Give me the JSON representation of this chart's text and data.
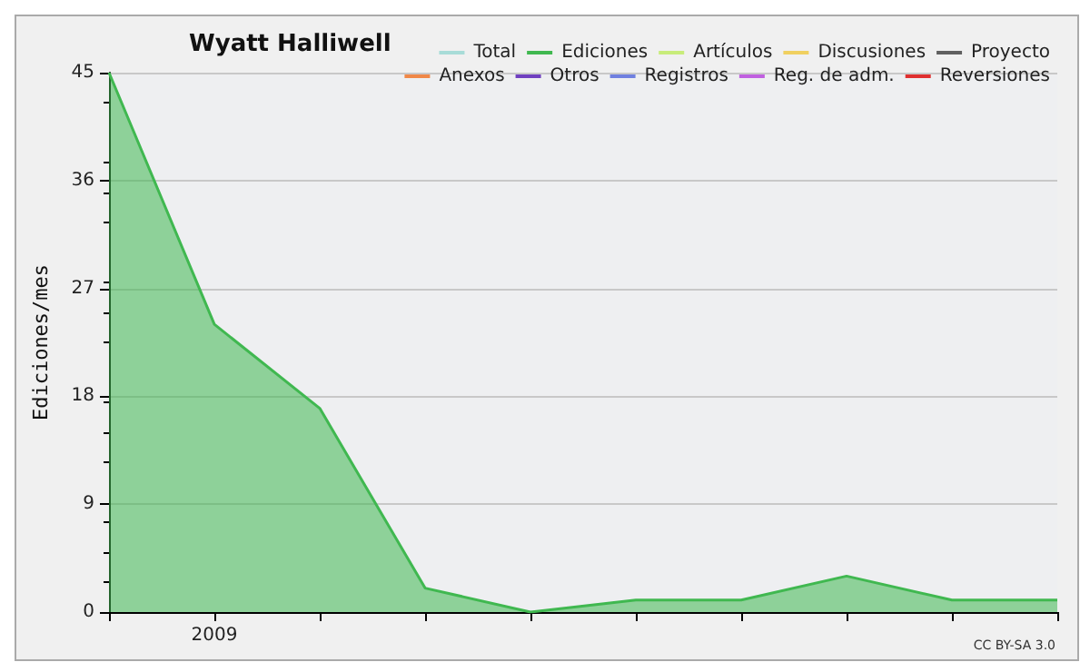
{
  "chart_data": {
    "type": "area",
    "title": "Wyatt Halliwell",
    "ylabel": "Ediciones/mes",
    "categories": [
      null,
      "2009",
      null,
      null,
      null,
      null,
      null,
      null,
      null,
      null
    ],
    "series": [
      {
        "name": "Total",
        "color": "#a8dcd8",
        "values": [
          null,
          null,
          null,
          null,
          null,
          null,
          null,
          null,
          null,
          null
        ]
      },
      {
        "name": "Ediciones",
        "color": "#40b850",
        "values": [
          45,
          24,
          17,
          2,
          0,
          1,
          1,
          3,
          1,
          1
        ]
      },
      {
        "name": "Artículos",
        "color": "#c8ec7a",
        "values": [
          null,
          null,
          null,
          null,
          null,
          null,
          null,
          null,
          null,
          null
        ]
      },
      {
        "name": "Discusiones",
        "color": "#f0d060",
        "values": [
          null,
          null,
          null,
          null,
          null,
          null,
          null,
          null,
          null,
          null
        ]
      },
      {
        "name": "Proyecto",
        "color": "#606060",
        "values": [
          null,
          null,
          null,
          null,
          null,
          null,
          null,
          null,
          null,
          null
        ]
      },
      {
        "name": "Anexos",
        "color": "#f08848",
        "values": [
          null,
          null,
          null,
          null,
          null,
          null,
          null,
          null,
          null,
          null
        ]
      },
      {
        "name": "Otros",
        "color": "#7040c0",
        "values": [
          null,
          null,
          null,
          null,
          null,
          null,
          null,
          null,
          null,
          null
        ]
      },
      {
        "name": "Registros",
        "color": "#7080e0",
        "values": [
          null,
          null,
          null,
          null,
          null,
          null,
          null,
          null,
          null,
          null
        ]
      },
      {
        "name": "Reg. de adm.",
        "color": "#c060e0",
        "values": [
          null,
          null,
          null,
          null,
          null,
          null,
          null,
          null,
          null,
          null
        ]
      },
      {
        "name": "Reversiones",
        "color": "#e03030",
        "values": [
          null,
          null,
          null,
          null,
          null,
          null,
          null,
          null,
          null,
          null
        ]
      }
    ],
    "ylim": [
      0,
      45
    ],
    "yticks": [
      0,
      9,
      18,
      27,
      36,
      45
    ],
    "grid": "y",
    "legend": "top right",
    "marker": "none",
    "annotations": [
      "CC BY-SA 3.0"
    ]
  }
}
